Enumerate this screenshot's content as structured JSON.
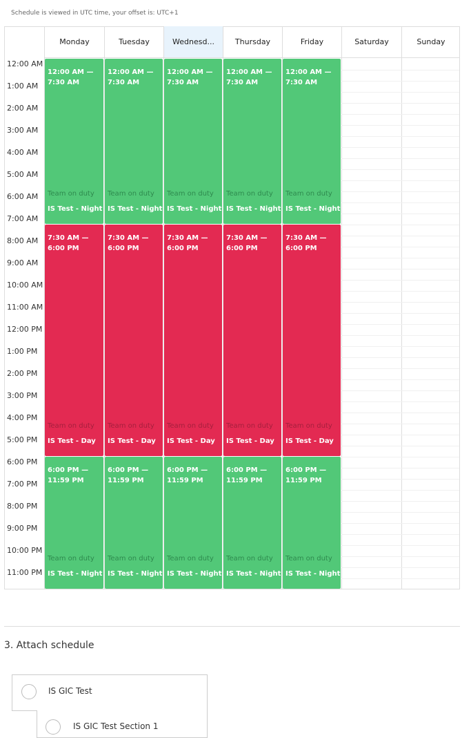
{
  "note": "Schedule is viewed in UTC time, your offset is: UTC+1",
  "days": [
    "Monday",
    "Tuesday",
    "Wednesd...",
    "Thursday",
    "Friday",
    "Saturday",
    "Sunday"
  ],
  "hours": [
    "12:00 AM",
    "1:00 AM",
    "2:00 AM",
    "3:00 AM",
    "4:00 AM",
    "5:00 AM",
    "6:00 AM",
    "7:00 AM",
    "8:00 AM",
    "9:00 AM",
    "10:00 AM",
    "11:00 AM",
    "12:00 PM",
    "1:00 PM",
    "2:00 PM",
    "3:00 PM",
    "4:00 PM",
    "5:00 PM",
    "6:00 PM",
    "7:00 PM",
    "8:00 PM",
    "9:00 PM",
    "10:00 PM",
    "11:00 PM"
  ],
  "events": [
    {
      "time": "12:00 AM — 7:30 AM",
      "label": "Team on duty",
      "name": "IS Test - Night"
    },
    {
      "time": "7:30 AM — 6:00 PM",
      "label": "Team on duty",
      "name": "IS Test - Day"
    },
    {
      "time": "6:00 PM — 11:59 PM",
      "label": "Team on duty",
      "name": "IS Test - Night"
    }
  ],
  "section": {
    "title": "3. Attach schedule",
    "items": [
      "IS GIC Test",
      "IS GIC Test Section 1"
    ]
  }
}
